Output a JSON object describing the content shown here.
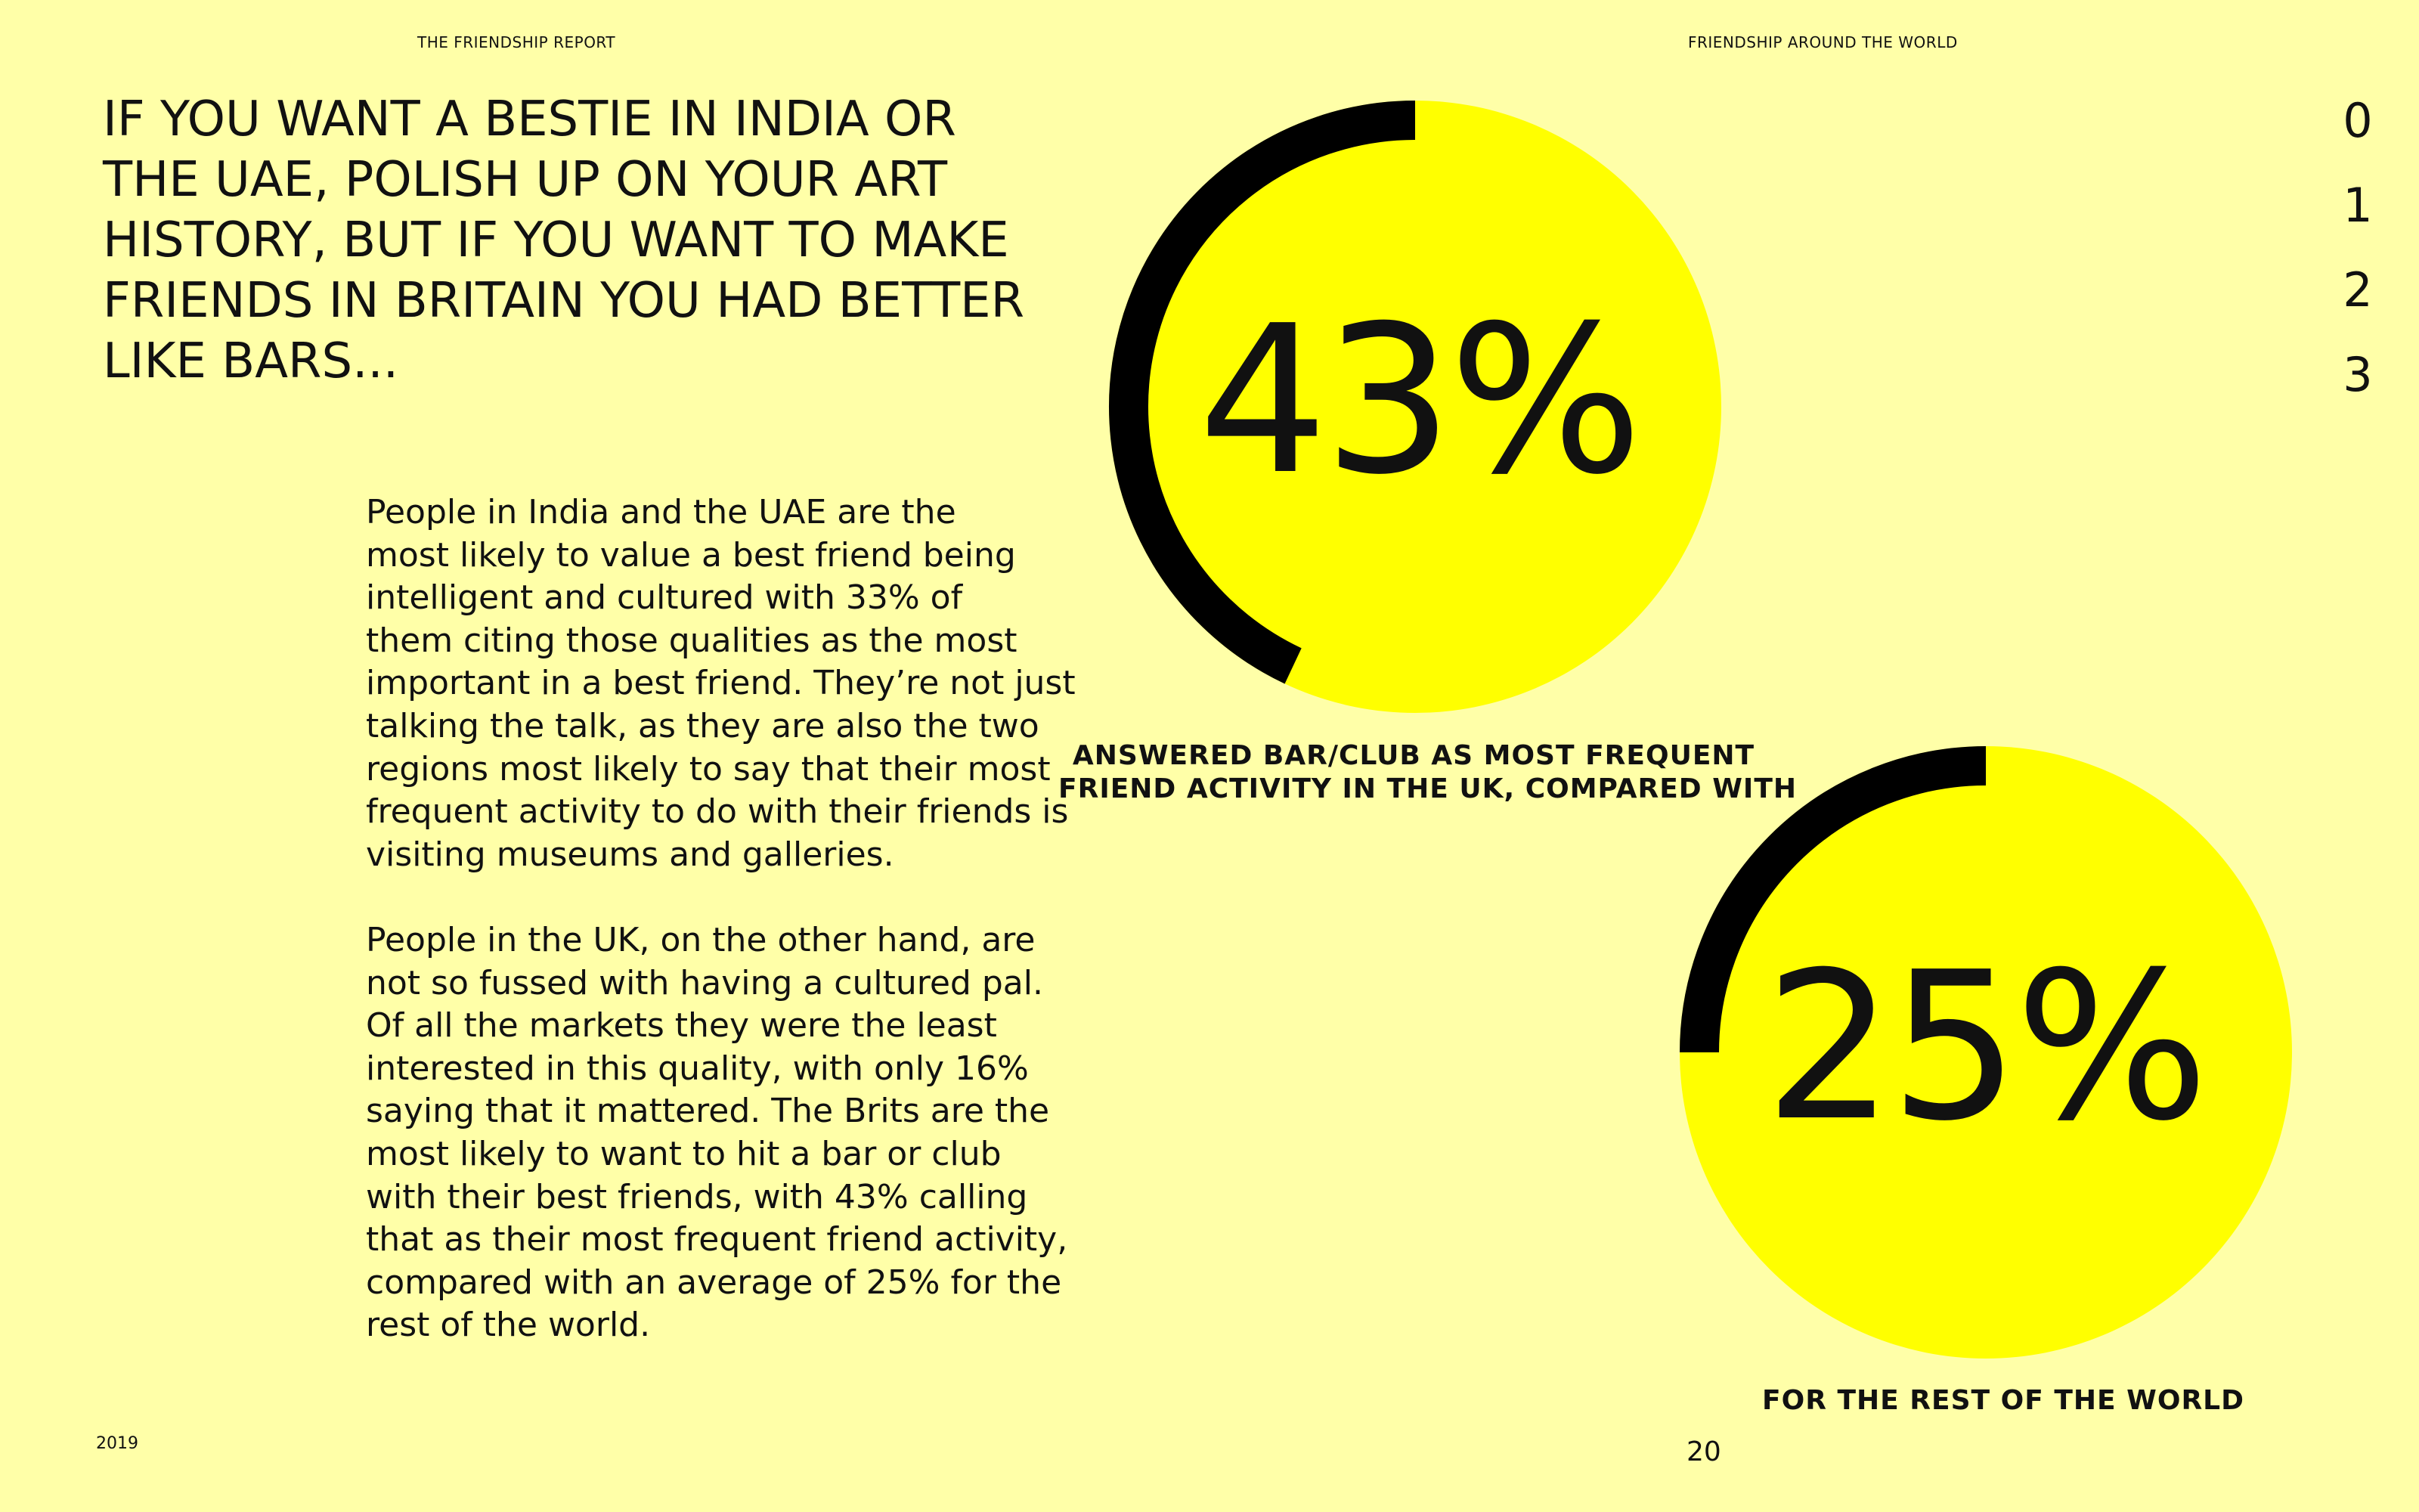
{
  "header": {
    "report_title": "THE FRIENDSHIP REPORT",
    "section_title": "FRIENDSHIP AROUND THE WORLD"
  },
  "headline": {
    "lines": [
      "IF YOU WANT A BESTIE IN INDIA OR",
      "THE UAE, POLISH UP ON YOUR ART",
      "HISTORY, BUT IF YOU WANT TO MAKE",
      "FRIENDS IN BRITAIN YOU HAD BETTER",
      "LIKE BARS..."
    ]
  },
  "body": {
    "paragraph_1_lines": [
      "People in India and the UAE are the",
      "most likely to value a best friend being",
      "intelligent and cultured with 33% of",
      "them citing those qualities as the most",
      "important in a best friend. They’re not just",
      "talking the talk, as they are also the two",
      "regions most likely to say that their most",
      "frequent activity to do with their friends is",
      "visiting museums and galleries."
    ],
    "paragraph_2_lines": [
      "People in the UK, on the other hand, are",
      "not so fussed with having a cultured pal.",
      "Of all the markets they were the least",
      "interested in this quality, with only 16%",
      "saying that it mattered. The Brits are the",
      "most likely to want to hit a bar or club",
      "with their best friends, with 43% calling",
      "that as their most frequent friend activity,",
      "compared with an average of 25% for the",
      "rest of the world."
    ]
  },
  "stats": {
    "uk": {
      "value_label": "43%",
      "value": 43,
      "caption_lines": [
        "ANSWERED BAR/CLUB AS MOST FREQUENT",
        "FRIEND ACTIVITY IN THE UK, COMPARED WITH"
      ]
    },
    "world": {
      "value_label": "25%",
      "value": 25,
      "caption_lines": [
        "FOR THE REST OF THE WORLD"
      ]
    }
  },
  "colors": {
    "page_background": "#ffffa8",
    "circle_fill": "#ffff00",
    "arc_stroke": "#000000",
    "text": "#111111"
  },
  "chapter_nav": [
    "0",
    "1",
    "2",
    "3"
  ],
  "footer": {
    "year": "2019",
    "page_number": "20"
  }
}
